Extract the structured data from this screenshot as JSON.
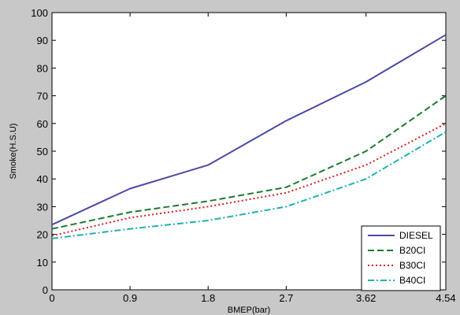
{
  "figure": {
    "background": "#c8c8c8",
    "plot_background": "#ffffff"
  },
  "chart_data": {
    "type": "line",
    "title": "",
    "xlabel": "BMEP(bar)",
    "ylabel": "Smoke(H.S.U)",
    "categories": [
      "0",
      "0.9",
      "1.8",
      "2.7",
      "3.62",
      "4.54"
    ],
    "x": [
      0,
      0.9,
      1.8,
      2.7,
      3.62,
      4.54
    ],
    "xlim": [
      0,
      4.54
    ],
    "ylim": [
      0,
      100
    ],
    "yticks": [
      0,
      10,
      20,
      30,
      40,
      50,
      60,
      70,
      80,
      90,
      100
    ],
    "grid": false,
    "legend_position": "bottom-right",
    "series": [
      {
        "name": "DIESEL",
        "color": "#4a4aa8",
        "dash": "solid",
        "values": [
          23.5,
          36.5,
          45,
          61,
          75,
          92
        ]
      },
      {
        "name": "B20CI",
        "color": "#1e7a30",
        "dash": "dash",
        "values": [
          22,
          28,
          32,
          37,
          50,
          70
        ]
      },
      {
        "name": "B30CI",
        "color": "#d42020",
        "dash": "dot",
        "values": [
          19.5,
          26,
          30,
          35,
          45,
          60
        ]
      },
      {
        "name": "B40CI",
        "color": "#20b0b0",
        "dash": "dashdot",
        "values": [
          18.5,
          22,
          25,
          30,
          40,
          57
        ]
      }
    ]
  }
}
